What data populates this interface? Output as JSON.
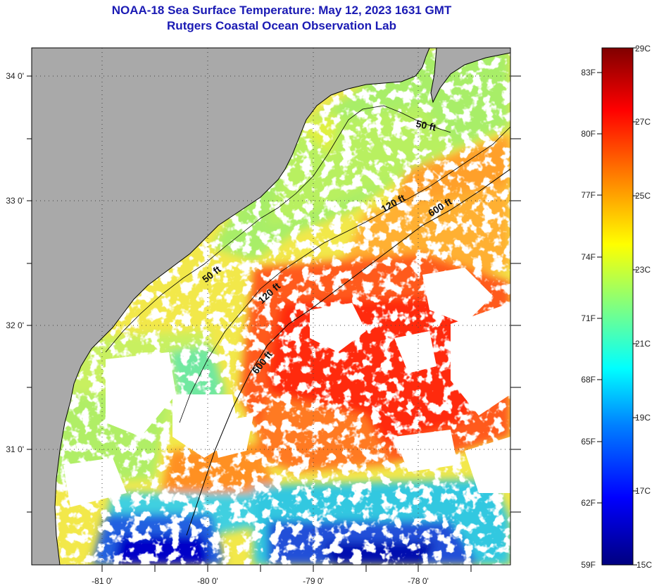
{
  "title": {
    "line1": "NOAA-18 Sea Surface Temperature:  May 12, 2023 1631 GMT",
    "line2": "Rutgers Coastal Ocean Observation Lab"
  },
  "map": {
    "lat_ticks": [
      "34 0'",
      "33 0'",
      "32 0'",
      "31 0'"
    ],
    "lon_ticks": [
      "-81 0'",
      "-80 0'",
      "-79 0'",
      "-78 0'"
    ],
    "contour_labels": [
      "50 ft",
      "120 ft",
      "600 ft",
      "50 ft",
      "120 ft",
      "600 ft"
    ],
    "land_color": "#a9a9a9",
    "cloud_color": "#ffffff"
  },
  "colorbar": {
    "fahrenheit": [
      "83F",
      "80F",
      "77F",
      "74F",
      "71F",
      "68F",
      "65F",
      "62F",
      "59F"
    ],
    "celsius": [
      "29C",
      "27C",
      "25C",
      "23C",
      "21C",
      "19C",
      "17C",
      "15C"
    ],
    "colors": [
      "#000080",
      "#0000ff",
      "#0080ff",
      "#00ffff",
      "#80ff80",
      "#ffff00",
      "#ff8000",
      "#ff0000",
      "#800000"
    ]
  }
}
